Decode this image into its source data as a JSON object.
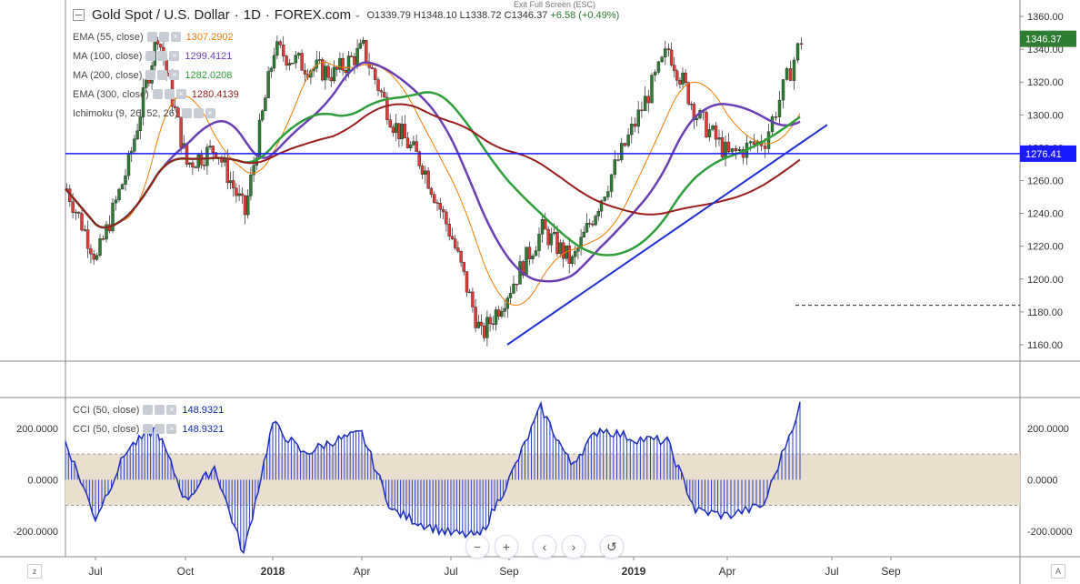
{
  "header": {
    "title": "Gold Spot / U.S. Dollar",
    "interval": "1D",
    "source": "FOREX.com",
    "o": "O1339.79",
    "h": "H1348.10",
    "l": "L1338.72",
    "c": "C1346.37",
    "change": "+6.58 (+0.49%)",
    "exit_fullscreen": "Exit Full Screen (ESC)"
  },
  "indicators": [
    {
      "label": "EMA (55, close)",
      "value": "1307.2902",
      "color": "#f57c00"
    },
    {
      "label": "MA (100, close)",
      "value": "1299.4121",
      "color": "#6a3fb5"
    },
    {
      "label": "MA (200, close)",
      "value": "1282.0208",
      "color": "#2e9e3a"
    },
    {
      "label": "EMA (300, close)",
      "value": "1280.4139",
      "color": "#9b1c1c"
    },
    {
      "label": "Ichimoku (9, 26, 52, 26)",
      "value": "",
      "color": "#8aa2c8"
    }
  ],
  "cci_legend": [
    {
      "label": "CCI (50, close)",
      "value": "148.9321",
      "color": "#0d2ca8"
    },
    {
      "label": "CCI (50, close)",
      "value": "148.9321",
      "color": "#0d2ca8"
    }
  ],
  "colors": {
    "up": "#2e7d32",
    "down": "#e53935",
    "hline": "#1a1aff",
    "trend": "#1f2fd6",
    "cci": "#1d2fb8",
    "band": "#eadfcf"
  },
  "chart_data": [
    {
      "type": "candlestick",
      "title": "Gold Spot / U.S. Dollar",
      "ylim": [
        1150,
        1370
      ],
      "y_ticks": [
        1160,
        1180,
        1200,
        1220,
        1240,
        1260,
        1280,
        1300,
        1320,
        1340,
        1360
      ],
      "x_ticks": [
        "Jul",
        "Oct",
        "2018",
        "Apr",
        "Jul",
        "Sep",
        "2019",
        "Apr",
        "Jul",
        "Sep"
      ],
      "x_ticks_bold": [
        "2018",
        "2019"
      ],
      "last_price": 1346.37,
      "horizontal_line": 1276.41,
      "dashed_level": 1184,
      "trendline": [
        [
          "Aug 2018",
          1160
        ],
        [
          "Jun 2019",
          1294
        ]
      ],
      "price_path": [
        [
          "Jun 2017",
          1255
        ],
        [
          "Jul 2017",
          1212
        ],
        [
          "Aug 2017",
          1270
        ],
        [
          "Sep 2017",
          1350
        ],
        [
          "Oct 2017",
          1270
        ],
        [
          "Nov 2017",
          1280
        ],
        [
          "Dec 2017",
          1240
        ],
        [
          "Jan 2018",
          1340
        ],
        [
          "Feb 2018",
          1330
        ],
        [
          "Mar 2018",
          1325
        ],
        [
          "Apr 2018",
          1340
        ],
        [
          "May 2018",
          1295
        ],
        [
          "Jun 2018",
          1270
        ],
        [
          "Jul 2018",
          1225
        ],
        [
          "Aug 2018",
          1165
        ],
        [
          "Sep 2018",
          1195
        ],
        [
          "Oct 2018",
          1230
        ],
        [
          "Nov 2018",
          1210
        ],
        [
          "Dec 2018",
          1250
        ],
        [
          "Jan 2019",
          1295
        ],
        [
          "Feb 2019",
          1340
        ],
        [
          "Mar 2019",
          1300
        ],
        [
          "Apr 2019",
          1275
        ],
        [
          "May 2019",
          1285
        ],
        [
          "Jun 2019",
          1346
        ]
      ],
      "series": [
        {
          "name": "EMA (55, close)",
          "last": 1307.2902
        },
        {
          "name": "MA (100, close)",
          "last": 1299.4121
        },
        {
          "name": "MA (200, close)",
          "last": 1282.0208
        },
        {
          "name": "EMA (300, close)",
          "last": 1280.4139
        }
      ]
    },
    {
      "type": "area",
      "title": "CCI (50, close)",
      "ylim": [
        -300,
        320
      ],
      "y_ticks": [
        -200,
        0,
        200
      ],
      "y_tick_labels": [
        "-200.0000",
        "0.0000",
        "200.0000"
      ],
      "band": [
        -100,
        100
      ],
      "last": 148.9321,
      "values_path": [
        [
          "Jun 2017",
          150
        ],
        [
          "Jul 2017",
          -150
        ],
        [
          "Aug 2017",
          120
        ],
        [
          "Sep 2017",
          200
        ],
        [
          "Oct 2017",
          -80
        ],
        [
          "Nov 2017",
          50
        ],
        [
          "Dec 2017",
          -290
        ],
        [
          "Jan 2018",
          220
        ],
        [
          "Feb 2018",
          100
        ],
        [
          "Mar 2018",
          150
        ],
        [
          "Apr 2018",
          180
        ],
        [
          "May 2018",
          -120
        ],
        [
          "Jun 2018",
          -170
        ],
        [
          "Jul 2018",
          -210
        ],
        [
          "Aug 2018",
          -220
        ],
        [
          "Sep 2018",
          0
        ],
        [
          "Oct 2018",
          280
        ],
        [
          "Nov 2018",
          60
        ],
        [
          "Dec 2018",
          200
        ],
        [
          "Jan 2019",
          160
        ],
        [
          "Feb 2019",
          150
        ],
        [
          "Mar 2019",
          -120
        ],
        [
          "Apr 2019",
          -140
        ],
        [
          "May 2019",
          -100
        ],
        [
          "Jun 2019",
          290
        ]
      ]
    }
  ]
}
